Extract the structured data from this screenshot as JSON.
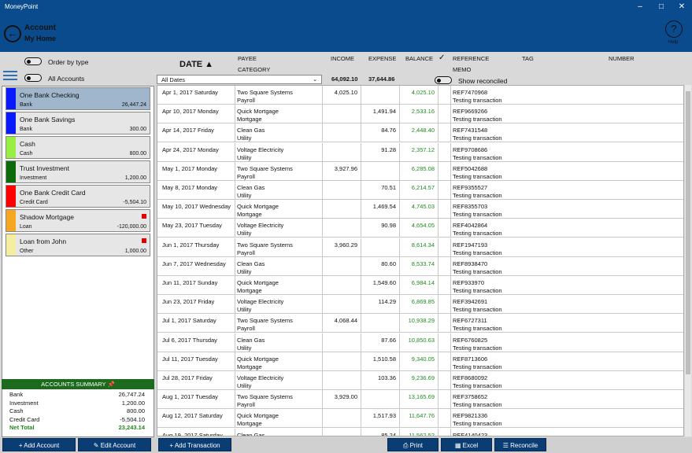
{
  "window": {
    "title": "MoneyPoint"
  },
  "header": {
    "back_icon": "back-arrow-icon",
    "title": "Account",
    "subtitle": "My Home",
    "help_label": "Help",
    "help_icon": "question-icon"
  },
  "options": {
    "order_by_type": "Order by type",
    "all_accounts": "All Accounts",
    "show_reconciled": "Show reconciled"
  },
  "accounts": [
    {
      "name": "One Bank Checking",
      "type": "Bank",
      "balance": "26,447.24",
      "color": "#0a1aff",
      "selected": true,
      "flag": false
    },
    {
      "name": "One Bank Savings",
      "type": "Bank",
      "balance": "300.00",
      "color": "#0a1aff",
      "selected": false,
      "flag": false
    },
    {
      "name": "Cash",
      "type": "Cash",
      "balance": "800.00",
      "color": "#99ee44",
      "selected": false,
      "flag": false
    },
    {
      "name": "Trust Investment",
      "type": "Investment",
      "balance": "1,200.00",
      "color": "#0b6b0b",
      "selected": false,
      "flag": false
    },
    {
      "name": "One Bank Credit Card",
      "type": "Credit Card",
      "balance": "-5,504.10",
      "color": "#ff0000",
      "selected": false,
      "flag": false
    },
    {
      "name": "Shadow Mortgage",
      "type": "Loan",
      "balance": "-120,000.00",
      "color": "#f5a623",
      "selected": false,
      "flag": true
    },
    {
      "name": "Loan from John",
      "type": "Other",
      "balance": "1,000.00",
      "color": "#f3eea0",
      "selected": false,
      "flag": true
    }
  ],
  "summary": {
    "title": "ACCOUNTS SUMMARY",
    "rows": [
      {
        "label": "Bank",
        "value": "26,747.24"
      },
      {
        "label": "Investment",
        "value": "1,200.00"
      },
      {
        "label": "Cash",
        "value": "800.00"
      },
      {
        "label": "Credit Card",
        "value": "-5,504.10"
      },
      {
        "label": "Net Total",
        "value": "23,243.14"
      }
    ]
  },
  "columns": {
    "date": "DATE ▲",
    "payee": "PAYEE",
    "category": "CATEGORY",
    "income": "INCOME",
    "expense": "EXPENSE",
    "balance": "BALANCE",
    "check": "✓",
    "reference": "REFERENCE",
    "memo": "MEMO",
    "tag": "TAG",
    "number": "NUMBER"
  },
  "filter": {
    "date_filter": "All Dates",
    "income_total": "64,092.10",
    "expense_total": "37,644.86"
  },
  "transactions": [
    {
      "date": "Apr 1, 2017 Saturday",
      "payee": "Two Square Systems",
      "category": "Payroll",
      "income": "4,025.10",
      "expense": "",
      "balance": "4,025.10",
      "reference": "REF7470968",
      "memo": "Testing transaction"
    },
    {
      "date": "Apr 10, 2017 Monday",
      "payee": "Quick Mortgage",
      "category": "Mortgage",
      "income": "",
      "expense": "1,491.94",
      "balance": "2,533.16",
      "reference": "REF9669266",
      "memo": "Testing transaction"
    },
    {
      "date": "Apr 14, 2017 Friday",
      "payee": "Clean Gas",
      "category": "Utility",
      "income": "",
      "expense": "84.76",
      "balance": "2,448.40",
      "reference": "REF7431548",
      "memo": "Testing transaction"
    },
    {
      "date": "Apr 24, 2017 Monday",
      "payee": "Voltage Electricity",
      "category": "Utility",
      "income": "",
      "expense": "91.28",
      "balance": "2,357.12",
      "reference": "REF9708686",
      "memo": "Testing transaction"
    },
    {
      "date": "May 1, 2017 Monday",
      "payee": "Two Square Systems",
      "category": "Payroll",
      "income": "3,927.96",
      "expense": "",
      "balance": "6,285.08",
      "reference": "REF5042688",
      "memo": "Testing transaction"
    },
    {
      "date": "May 8, 2017 Monday",
      "payee": "Clean Gas",
      "category": "Utility",
      "income": "",
      "expense": "70.51",
      "balance": "6,214.57",
      "reference": "REF9355527",
      "memo": "Testing transaction"
    },
    {
      "date": "May 10, 2017 Wednesday",
      "payee": "Quick Mortgage",
      "category": "Mortgage",
      "income": "",
      "expense": "1,469.54",
      "balance": "4,745.03",
      "reference": "REF8355703",
      "memo": "Testing transaction"
    },
    {
      "date": "May 23, 2017 Tuesday",
      "payee": "Voltage Electricity",
      "category": "Utility",
      "income": "",
      "expense": "90.98",
      "balance": "4,654.05",
      "reference": "REF4042864",
      "memo": "Testing transaction"
    },
    {
      "date": "Jun 1, 2017 Thursday",
      "payee": "Two Square Systems",
      "category": "Payroll",
      "income": "3,960.29",
      "expense": "",
      "balance": "8,614.34",
      "reference": "REF1947193",
      "memo": "Testing transaction"
    },
    {
      "date": "Jun 7, 2017 Wednesday",
      "payee": "Clean Gas",
      "category": "Utility",
      "income": "",
      "expense": "80.60",
      "balance": "8,533.74",
      "reference": "REF8938470",
      "memo": "Testing transaction"
    },
    {
      "date": "Jun 11, 2017 Sunday",
      "payee": "Quick Mortgage",
      "category": "Mortgage",
      "income": "",
      "expense": "1,549.60",
      "balance": "6,984.14",
      "reference": "REF933970",
      "memo": "Testing transaction"
    },
    {
      "date": "Jun 23, 2017 Friday",
      "payee": "Voltage Electricity",
      "category": "Utility",
      "income": "",
      "expense": "114.29",
      "balance": "6,869.85",
      "reference": "REF3942691",
      "memo": "Testing transaction"
    },
    {
      "date": "Jul 1, 2017 Saturday",
      "payee": "Two Square Systems",
      "category": "Payroll",
      "income": "4,068.44",
      "expense": "",
      "balance": "10,938.29",
      "reference": "REF6727311",
      "memo": "Testing transaction"
    },
    {
      "date": "Jul 6, 2017 Thursday",
      "payee": "Clean Gas",
      "category": "Utility",
      "income": "",
      "expense": "87.66",
      "balance": "10,850.63",
      "reference": "REF6760825",
      "memo": "Testing transaction"
    },
    {
      "date": "Jul 11, 2017 Tuesday",
      "payee": "Quick Mortgage",
      "category": "Mortgage",
      "income": "",
      "expense": "1,510.58",
      "balance": "9,340.05",
      "reference": "REF8713606",
      "memo": "Testing transaction"
    },
    {
      "date": "Jul 28, 2017 Friday",
      "payee": "Voltage Electricity",
      "category": "Utility",
      "income": "",
      "expense": "103.36",
      "balance": "9,236.69",
      "reference": "REF8680092",
      "memo": "Testing transaction"
    },
    {
      "date": "Aug 1, 2017 Tuesday",
      "payee": "Two Square Systems",
      "category": "Payroll",
      "income": "3,929.00",
      "expense": "",
      "balance": "13,165.69",
      "reference": "REF3758652",
      "memo": "Testing transaction"
    },
    {
      "date": "Aug 12, 2017 Saturday",
      "payee": "Quick Mortgage",
      "category": "Mortgage",
      "income": "",
      "expense": "1,517.93",
      "balance": "11,647.76",
      "reference": "REF9821336",
      "memo": "Testing transaction"
    },
    {
      "date": "Aug 19, 2017 Saturday",
      "payee": "Clean Gas",
      "category": "Utility",
      "income": "",
      "expense": "85.24",
      "balance": "11,562.52",
      "reference": "REF4140423",
      "memo": "Testing transaction"
    }
  ],
  "toolbar": {
    "add_account": "Add Account",
    "edit_account": "Edit Account",
    "add_transaction": "Add Transaction",
    "print": "Print",
    "excel": "Excel",
    "reconcile": "Reconcile"
  }
}
